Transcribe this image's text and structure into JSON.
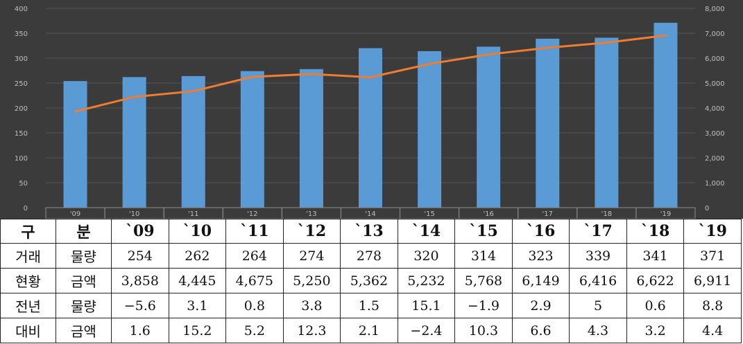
{
  "chart_data": {
    "type": "bar",
    "categories": [
      "'09",
      "'10",
      "'11",
      "'12",
      "'13",
      "'14",
      "'15",
      "'16",
      "'17",
      "'18",
      "'19"
    ],
    "series": [
      {
        "type": "bar",
        "axis": "left",
        "values": [
          254,
          262,
          264,
          274,
          278,
          320,
          314,
          323,
          339,
          341,
          371
        ]
      },
      {
        "type": "line",
        "axis": "right",
        "values": [
          3858,
          4445,
          4675,
          5250,
          5362,
          5232,
          5768,
          6149,
          6416,
          6622,
          6911
        ]
      }
    ],
    "y_left": {
      "min": 0,
      "max": 400,
      "ticks": [
        "0",
        "50",
        "100",
        "150",
        "200",
        "250",
        "300",
        "350",
        "400"
      ]
    },
    "y_right": {
      "min": 0,
      "max": 8000,
      "ticks": [
        "0",
        "1,000",
        "2,000",
        "3,000",
        "4,000",
        "5,000",
        "6,000",
        "7,000",
        "8,000"
      ]
    },
    "grid": true,
    "colors": {
      "background": "#3b3b3b",
      "bar": "#5b9bd5",
      "line": "#ed7d31",
      "grid": "#555555",
      "tick_text": "#bfbfbf"
    }
  },
  "table": {
    "header": {
      "c1": "구",
      "c2": "분",
      "years": [
        "`09",
        "`10",
        "`11",
        "`12",
        "`13",
        "`14",
        "`15",
        "`16",
        "`17",
        "`18",
        "`19"
      ]
    },
    "rows": [
      {
        "g": "거래",
        "s": "물량",
        "v": [
          "254",
          "262",
          "264",
          "274",
          "278",
          "320",
          "314",
          "323",
          "339",
          "341",
          "371"
        ]
      },
      {
        "g": "현황",
        "s": "금액",
        "v": [
          "3,858",
          "4,445",
          "4,675",
          "5,250",
          "5,362",
          "5,232",
          "5,768",
          "6,149",
          "6,416",
          "6,622",
          "6,911"
        ]
      },
      {
        "g": "전년",
        "s": "물량",
        "v": [
          "−5.6",
          "3.1",
          "0.8",
          "3.8",
          "1.5",
          "15.1",
          "−1.9",
          "2.9",
          "5",
          "0.6",
          "8.8"
        ]
      },
      {
        "g": "대비",
        "s": "금액",
        "v": [
          "1.6",
          "15.2",
          "5.2",
          "12.3",
          "2.1",
          "−2.4",
          "10.3",
          "6.6",
          "4.3",
          "3.2",
          "4.4"
        ]
      }
    ]
  }
}
